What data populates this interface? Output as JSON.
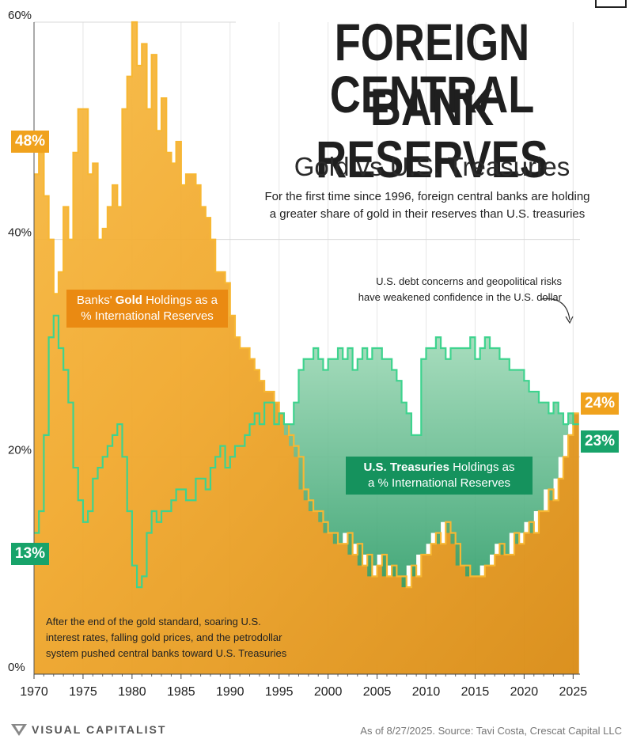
{
  "title_line1": "FOREIGN CENTRAL",
  "title_line2": "BANK RESERVES",
  "subtitle": "Gold vs U.S. Treasuries",
  "description_line1": "For the first time since 1996, foreign central banks are holding",
  "description_line2": "a greater share of gold in their reserves than U.S. treasuries",
  "badges": {
    "gold_start": "48%",
    "treasury_start": "13%",
    "gold_end": "24%",
    "treasury_end": "23%"
  },
  "callouts": {
    "gold_pre": "Banks'",
    "gold_bold": "Gold",
    "gold_post1": "Holdings as a",
    "gold_post2": "% International Reserves",
    "treasury_bold": "U.S. Treasuries",
    "treasury_post1": "Holdings as",
    "treasury_post2": "a % International Reserves"
  },
  "notes": {
    "debt_line1": "U.S. debt concerns and geopolitical risks",
    "debt_line2": "have weakened confidence in the U.S. dollar",
    "gold_standard_line1": "After the end of the gold standard, soaring U.S.",
    "gold_standard_line2": "interest rates, falling gold prices, and the petrodollar",
    "gold_standard_line3": "system pushed central banks toward U.S. Treasuries"
  },
  "footer": {
    "brand": "VISUAL CAPITALIST",
    "source": "As of 8/27/2025. Source: Tavi Costa, Crescat Capital LLC"
  },
  "colors": {
    "gold": "#f0a21d",
    "gold_dark": "#d68612",
    "treasury": "#18a36a",
    "treasury_line": "#3ed38e",
    "gold_line": "#f7b733"
  },
  "chart_data": {
    "type": "area",
    "x_tick_labels": [
      "1970",
      "1975",
      "1980",
      "1985",
      "1990",
      "1995",
      "2000",
      "2005",
      "2010",
      "2015",
      "2020",
      "2025"
    ],
    "y_tick_labels": [
      "0%",
      "20%",
      "40%",
      "60%"
    ],
    "ylim": [
      0,
      60
    ],
    "xlim": [
      1970,
      2025.7
    ],
    "grid": true,
    "series": [
      {
        "name": "Banks' Gold Holdings as a % International Reserves",
        "x": [
          1970,
          1970.5,
          1971,
          1971.5,
          1972,
          1972.5,
          1973,
          1973.5,
          1974,
          1974.5,
          1975,
          1975.5,
          1976,
          1976.5,
          1977,
          1977.5,
          1978,
          1978.5,
          1979,
          1979.5,
          1980,
          1980.5,
          1981,
          1981.5,
          1982,
          1982.5,
          1983,
          1983.5,
          1984,
          1984.5,
          1985,
          1985.5,
          1986,
          1986.5,
          1987,
          1987.5,
          1988,
          1988.5,
          1989,
          1989.5,
          1990,
          1990.5,
          1991,
          1991.5,
          1992,
          1992.5,
          1993,
          1993.5,
          1994,
          1994.5,
          1995,
          1995.5,
          1996,
          1996.5,
          1997,
          1997.5,
          1998,
          1998.5,
          1999,
          1999.5,
          2000,
          2000.5,
          2001,
          2001.5,
          2002,
          2002.5,
          2003,
          2003.5,
          2004,
          2004.5,
          2005,
          2005.5,
          2006,
          2006.5,
          2007,
          2007.5,
          2008,
          2008.5,
          2009,
          2009.5,
          2010,
          2010.5,
          2011,
          2011.5,
          2012,
          2012.5,
          2013,
          2013.5,
          2014,
          2014.5,
          2015,
          2015.5,
          2016,
          2016.5,
          2017,
          2017.5,
          2018,
          2018.5,
          2019,
          2019.5,
          2020,
          2020.5,
          2021,
          2021.5,
          2022,
          2022.5,
          2023,
          2023.5,
          2024,
          2024.5,
          2025,
          2025.6
        ],
        "values": [
          46,
          48,
          44,
          40,
          35,
          37,
          43,
          40,
          48,
          52,
          52,
          46,
          47,
          40,
          41,
          43,
          45,
          43,
          52,
          55,
          60,
          56,
          58,
          52,
          57,
          50,
          53,
          48,
          47,
          49,
          45,
          46,
          46,
          45,
          43,
          42,
          40,
          37,
          37,
          36,
          33,
          31,
          30,
          30,
          29,
          28,
          27,
          26,
          26,
          25,
          24,
          23,
          22,
          21,
          20,
          17,
          16,
          15,
          15,
          14,
          13,
          13,
          12,
          12,
          13,
          11,
          12,
          10,
          11,
          9,
          10,
          11,
          9,
          10,
          9,
          9,
          8,
          10,
          9,
          11,
          11,
          12,
          13,
          12,
          14,
          13,
          12,
          10,
          10,
          9,
          9,
          9,
          10,
          10,
          11,
          12,
          11,
          11,
          13,
          12,
          13,
          14,
          13,
          15,
          15,
          17,
          16,
          18,
          20,
          22,
          24,
          24
        ]
      },
      {
        "name": "U.S. Treasuries Holdings as a % International Reserves",
        "x": [
          1970,
          1970.5,
          1971,
          1971.5,
          1972,
          1972.5,
          1973,
          1973.5,
          1974,
          1974.5,
          1975,
          1975.5,
          1976,
          1976.5,
          1977,
          1977.5,
          1978,
          1978.5,
          1979,
          1979.5,
          1980,
          1980.5,
          1981,
          1981.5,
          1982,
          1982.5,
          1983,
          1983.5,
          1984,
          1984.5,
          1985,
          1985.5,
          1986,
          1986.5,
          1987,
          1987.5,
          1988,
          1988.5,
          1989,
          1989.5,
          1990,
          1990.5,
          1991,
          1991.5,
          1992,
          1992.5,
          1993,
          1993.5,
          1994,
          1994.5,
          1995,
          1995.5,
          1996,
          1996.5,
          1997,
          1997.5,
          1998,
          1998.5,
          1999,
          1999.5,
          2000,
          2000.5,
          2001,
          2001.5,
          2002,
          2002.5,
          2003,
          2003.5,
          2004,
          2004.5,
          2005,
          2005.5,
          2006,
          2006.5,
          2007,
          2007.5,
          2008,
          2008.5,
          2009,
          2009.5,
          2010,
          2010.5,
          2011,
          2011.5,
          2012,
          2012.5,
          2013,
          2013.5,
          2014,
          2014.5,
          2015,
          2015.5,
          2016,
          2016.5,
          2017,
          2017.5,
          2018,
          2018.5,
          2019,
          2019.5,
          2020,
          2020.5,
          2021,
          2021.5,
          2022,
          2022.5,
          2023,
          2023.5,
          2024,
          2024.5,
          2025,
          2025.6
        ],
        "values": [
          13,
          15,
          22,
          31,
          33,
          30,
          28,
          25,
          19,
          16,
          14,
          15,
          18,
          19,
          20,
          21,
          22,
          23,
          20,
          15,
          10,
          8,
          9,
          13,
          15,
          14,
          15,
          15,
          16,
          17,
          17,
          16,
          16,
          18,
          18,
          17,
          19,
          20,
          21,
          19,
          20,
          21,
          21,
          22,
          23,
          24,
          23,
          25,
          25,
          23,
          24,
          23,
          23,
          25,
          28,
          29,
          29,
          30,
          29,
          28,
          29,
          29,
          30,
          29,
          30,
          28,
          29,
          30,
          29,
          30,
          30,
          29,
          29,
          28,
          27,
          25,
          24,
          22,
          22,
          29,
          30,
          30,
          31,
          30,
          29,
          30,
          30,
          30,
          30,
          31,
          29,
          30,
          31,
          30,
          30,
          29,
          29,
          28,
          28,
          28,
          27,
          26,
          26,
          25,
          25,
          24,
          25,
          24,
          23,
          24,
          23,
          23
        ]
      }
    ]
  }
}
